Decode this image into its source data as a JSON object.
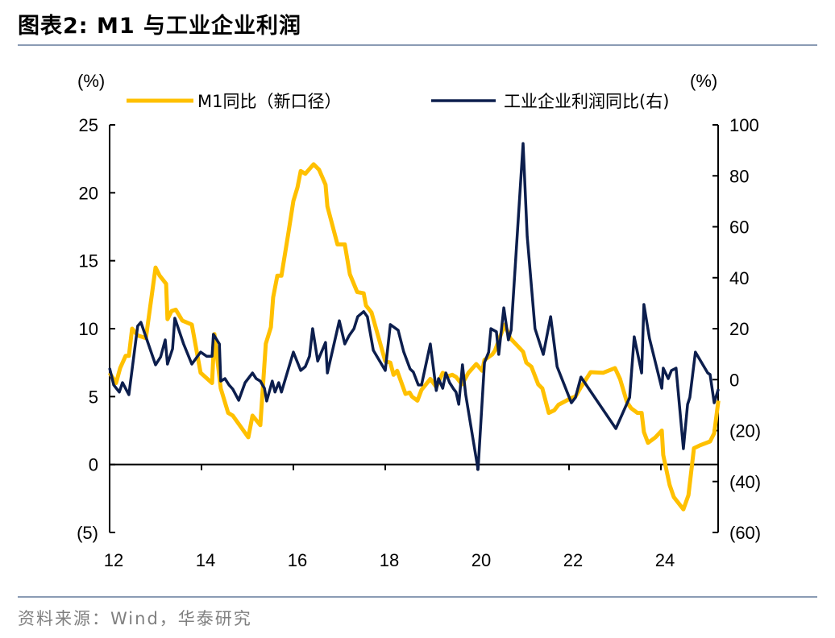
{
  "title": "图表2:  M1 与工业企业利润",
  "source": "资料来源：Wind，华泰研究",
  "chart_data": {
    "type": "line",
    "title": "图表2:  M1 与工业企业利润",
    "left_unit": "(%)",
    "right_unit": "(%)",
    "xlim": [
      12,
      25.25
    ],
    "x_ticks": [
      12,
      14,
      16,
      18,
      20,
      22,
      24
    ],
    "x_tick_labels": [
      "12",
      "14",
      "16",
      "18",
      "20",
      "22",
      "24"
    ],
    "ylim_left": [
      -5,
      25
    ],
    "y_left_ticks": [
      -5,
      0,
      5,
      10,
      15,
      20,
      25
    ],
    "y_left_tick_labels": [
      "(5)",
      "0",
      "5",
      "10",
      "15",
      "20",
      "25"
    ],
    "ylim_right": [
      -60,
      100
    ],
    "y_right_ticks": [
      -60,
      -40,
      -20,
      0,
      20,
      40,
      60,
      80,
      100
    ],
    "y_right_tick_labels": [
      "(60)",
      "(40)",
      "(20)",
      "0",
      "20",
      "40",
      "60",
      "80",
      "100"
    ],
    "grid": false,
    "legend_position": "top",
    "series": [
      {
        "name": "M1同比（新口径）",
        "axis": "left",
        "color": "#FFC000",
        "points": [
          [
            12.0,
            6.75
          ],
          [
            12.14,
            6.0
          ],
          [
            12.23,
            7.1
          ],
          [
            12.35,
            8.0
          ],
          [
            12.42,
            8.0
          ],
          [
            12.49,
            10.0
          ],
          [
            12.61,
            9.5
          ],
          [
            12.79,
            9.3
          ],
          [
            13.0,
            14.5
          ],
          [
            13.09,
            13.9
          ],
          [
            13.23,
            13.3
          ],
          [
            13.26,
            10.7
          ],
          [
            13.35,
            11.3
          ],
          [
            13.44,
            11.4
          ],
          [
            13.58,
            10.6
          ],
          [
            13.79,
            10.3
          ],
          [
            13.98,
            6.75
          ],
          [
            14.23,
            6.0
          ],
          [
            14.28,
            9.6
          ],
          [
            14.42,
            5.6
          ],
          [
            14.58,
            3.8
          ],
          [
            14.68,
            3.6
          ],
          [
            15.02,
            2.0
          ],
          [
            15.11,
            3.6
          ],
          [
            15.28,
            2.9
          ],
          [
            15.4,
            8.9
          ],
          [
            15.51,
            10.1
          ],
          [
            15.56,
            12.3
          ],
          [
            15.65,
            13.9
          ],
          [
            15.74,
            13.9
          ],
          [
            15.89,
            17.0
          ],
          [
            16.0,
            19.4
          ],
          [
            16.09,
            20.4
          ],
          [
            16.16,
            21.6
          ],
          [
            16.26,
            21.4
          ],
          [
            16.44,
            22.1
          ],
          [
            16.56,
            21.7
          ],
          [
            16.7,
            20.6
          ],
          [
            16.74,
            19.0
          ],
          [
            16.96,
            16.2
          ],
          [
            17.12,
            16.2
          ],
          [
            17.23,
            14.0
          ],
          [
            17.39,
            12.7
          ],
          [
            17.53,
            12.6
          ],
          [
            17.58,
            11.7
          ],
          [
            17.7,
            11.2
          ],
          [
            18.0,
            7.6
          ],
          [
            18.11,
            7.5
          ],
          [
            18.18,
            6.6
          ],
          [
            18.26,
            6.9
          ],
          [
            18.44,
            5.2
          ],
          [
            18.53,
            5.3
          ],
          [
            18.58,
            5.0
          ],
          [
            18.7,
            4.7
          ],
          [
            18.79,
            5.5
          ],
          [
            18.98,
            6.3
          ],
          [
            19.11,
            5.7
          ],
          [
            19.25,
            6.75
          ],
          [
            19.37,
            6.5
          ],
          [
            19.46,
            6.6
          ],
          [
            19.54,
            6.45
          ],
          [
            19.67,
            5.9
          ],
          [
            19.81,
            6.75
          ],
          [
            19.98,
            7.4
          ],
          [
            20.11,
            6.9
          ],
          [
            20.16,
            7.7
          ],
          [
            20.33,
            8.1
          ],
          [
            20.39,
            8.4
          ],
          [
            20.51,
            9.5
          ],
          [
            20.6,
            10.3
          ],
          [
            20.72,
            9.3
          ],
          [
            20.86,
            8.8
          ],
          [
            21.0,
            8.3
          ],
          [
            21.07,
            7.5
          ],
          [
            21.18,
            7.2
          ],
          [
            21.33,
            5.9
          ],
          [
            21.42,
            5.6
          ],
          [
            21.56,
            3.8
          ],
          [
            21.68,
            4.0
          ],
          [
            21.77,
            4.4
          ],
          [
            22.05,
            4.9
          ],
          [
            22.14,
            5.0
          ],
          [
            22.26,
            5.7
          ],
          [
            22.47,
            6.8
          ],
          [
            22.74,
            6.75
          ],
          [
            23.0,
            7.1
          ],
          [
            23.11,
            6.3
          ],
          [
            23.26,
            4.6
          ],
          [
            23.35,
            4.15
          ],
          [
            23.49,
            3.8
          ],
          [
            23.58,
            3.8
          ],
          [
            23.63,
            2.4
          ],
          [
            23.72,
            1.6
          ],
          [
            23.88,
            2.0
          ],
          [
            24.02,
            2.5
          ],
          [
            24.05,
            0.7
          ],
          [
            24.19,
            -1.5
          ],
          [
            24.28,
            -2.4
          ],
          [
            24.49,
            -3.3
          ],
          [
            24.6,
            -2.25
          ],
          [
            24.72,
            1.2
          ],
          [
            24.84,
            1.4
          ],
          [
            25.07,
            1.7
          ],
          [
            25.16,
            2.3
          ],
          [
            25.25,
            4.7
          ]
        ]
      },
      {
        "name": "工业企业利润同比(右)",
        "axis": "right",
        "color": "#0C1E4D",
        "points": [
          [
            12.0,
            4.5
          ],
          [
            12.09,
            -2.1
          ],
          [
            12.21,
            -4.9
          ],
          [
            12.28,
            -1.2
          ],
          [
            12.42,
            -5.9
          ],
          [
            12.61,
            21
          ],
          [
            12.68,
            22.5
          ],
          [
            13.0,
            5.8
          ],
          [
            13.11,
            8.9
          ],
          [
            13.21,
            15.6
          ],
          [
            13.26,
            6.1
          ],
          [
            13.37,
            12.1
          ],
          [
            13.42,
            24.1
          ],
          [
            13.49,
            20.4
          ],
          [
            13.61,
            14.0
          ],
          [
            13.79,
            6.1
          ],
          [
            13.98,
            10.8
          ],
          [
            14.11,
            9.2
          ],
          [
            14.23,
            9.2
          ],
          [
            14.26,
            17.8
          ],
          [
            14.39,
            14.0
          ],
          [
            14.42,
            -0.6
          ],
          [
            14.51,
            0.4
          ],
          [
            14.6,
            -2.1
          ],
          [
            14.68,
            -3.7
          ],
          [
            14.81,
            -8.1
          ],
          [
            14.95,
            -1.2
          ],
          [
            15.11,
            2.6
          ],
          [
            15.19,
            0.4
          ],
          [
            15.28,
            -0.6
          ],
          [
            15.37,
            -3.4
          ],
          [
            15.42,
            -8.4
          ],
          [
            15.54,
            -0.6
          ],
          [
            15.6,
            -4.9
          ],
          [
            15.68,
            -1.2
          ],
          [
            15.74,
            -4.9
          ],
          [
            16.0,
            10.8
          ],
          [
            16.16,
            3.6
          ],
          [
            16.26,
            5.1
          ],
          [
            16.35,
            9.2
          ],
          [
            16.42,
            20
          ],
          [
            16.53,
            7.3
          ],
          [
            16.7,
            14.6
          ],
          [
            16.74,
            2.6
          ],
          [
            17.0,
            23.1
          ],
          [
            17.12,
            14.0
          ],
          [
            17.21,
            17.2
          ],
          [
            17.32,
            20
          ],
          [
            17.4,
            24.7
          ],
          [
            17.53,
            26.7
          ],
          [
            17.61,
            24.7
          ],
          [
            17.74,
            11.5
          ],
          [
            18.0,
            3.6
          ],
          [
            18.11,
            21.6
          ],
          [
            18.28,
            19.4
          ],
          [
            18.4,
            11
          ],
          [
            18.54,
            4.2
          ],
          [
            18.61,
            3.0
          ],
          [
            18.72,
            -2.1
          ],
          [
            18.79,
            -2.1
          ],
          [
            18.98,
            14
          ],
          [
            19.11,
            -4.3
          ],
          [
            19.16,
            0.4
          ],
          [
            19.25,
            -3.4
          ],
          [
            19.32,
            2.6
          ],
          [
            19.4,
            -1.2
          ],
          [
            19.49,
            -3.7
          ],
          [
            19.54,
            -4.9
          ],
          [
            19.6,
            -9.7
          ],
          [
            19.68,
            5.8
          ],
          [
            19.75,
            -5.9
          ],
          [
            20.02,
            -35.3
          ],
          [
            20.16,
            6.7
          ],
          [
            20.25,
            10.8
          ],
          [
            20.3,
            20
          ],
          [
            20.42,
            18.8
          ],
          [
            20.47,
            9.9
          ],
          [
            20.58,
            28.2
          ],
          [
            20.68,
            15.6
          ],
          [
            20.74,
            19.4
          ],
          [
            21.0,
            92.7
          ],
          [
            21.09,
            56.3
          ],
          [
            21.26,
            20
          ],
          [
            21.44,
            9.9
          ],
          [
            21.6,
            24.7
          ],
          [
            21.74,
            5.1
          ],
          [
            22.05,
            -9.1
          ],
          [
            22.14,
            -7
          ],
          [
            22.26,
            1
          ],
          [
            23.02,
            -19.2
          ],
          [
            23.32,
            -7
          ],
          [
            23.42,
            16.8
          ],
          [
            23.58,
            2.6
          ],
          [
            23.63,
            29.5
          ],
          [
            23.75,
            16.2
          ],
          [
            24.02,
            -3.4
          ],
          [
            24.05,
            4.5
          ],
          [
            24.16,
            0.4
          ],
          [
            24.23,
            3.6
          ],
          [
            24.33,
            4.5
          ],
          [
            24.49,
            -27.1
          ],
          [
            24.58,
            -9.7
          ],
          [
            24.63,
            -7
          ],
          [
            24.75,
            10.8
          ],
          [
            25.02,
            2.6
          ],
          [
            25.07,
            2.0
          ],
          [
            25.16,
            -9.1
          ],
          [
            25.25,
            -3.7
          ]
        ]
      }
    ]
  }
}
